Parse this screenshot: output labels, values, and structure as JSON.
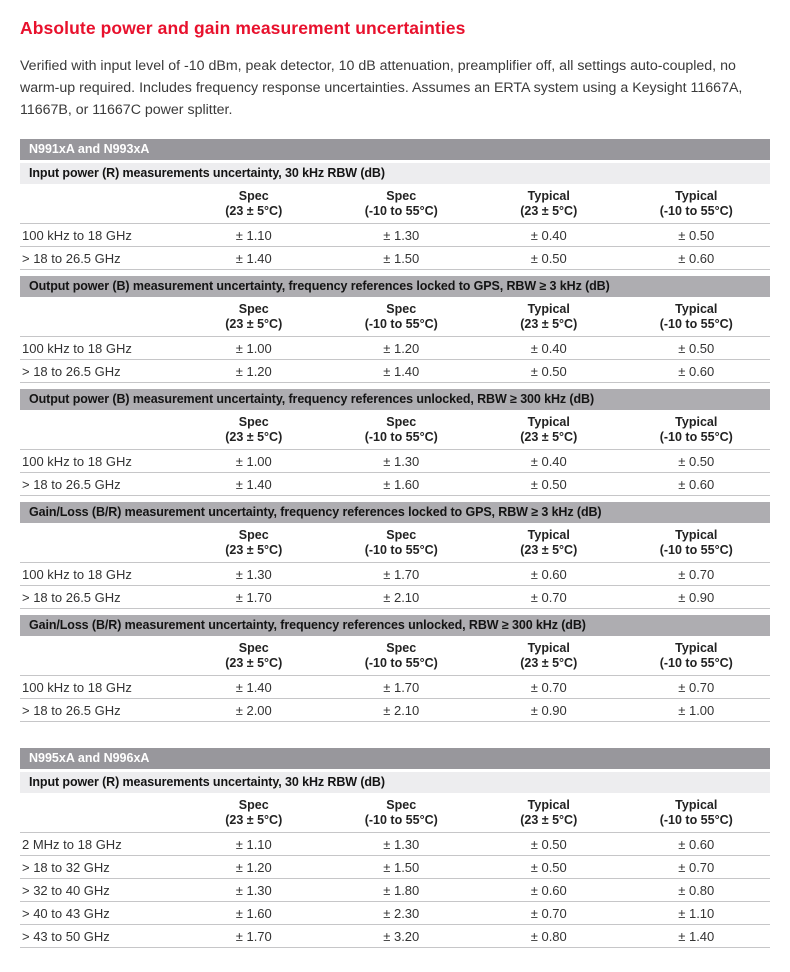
{
  "title": "Absolute power and gain measurement uncertainties",
  "intro": "Verified with input level of -10 dBm, peak detector, 10 dB attenuation, preamplifier off, all settings auto-coupled, no warm-up required. Includes frequency response uncertainties. Assumes an ERTA system using a Keysight 11667A, 11667B, or 11667C power splitter.",
  "colors": {
    "accent": "#e8112d",
    "product_bar": "#98979c",
    "section_bar": "#aeadb1",
    "light_bar": "#ededef",
    "rule": "#c6c6c8"
  },
  "columns": [
    {
      "l1": "Spec",
      "l2": "(23 ± 5°C)"
    },
    {
      "l1": "Spec",
      "l2": "(-10 to 55°C)"
    },
    {
      "l1": "Typical",
      "l2": "(23 ± 5°C)"
    },
    {
      "l1": "Typical",
      "l2": "(-10 to 55°C)"
    }
  ],
  "tables": [
    {
      "product": "N991xA and N993xA",
      "sections": [
        {
          "title": "Input power (R) measurements uncertainty, 30 kHz RBW (dB)",
          "style": "light",
          "rows": [
            {
              "label": "100 kHz to 18 GHz",
              "values": [
                "± 1.10",
                "± 1.30",
                "± 0.40",
                "± 0.50"
              ]
            },
            {
              "label": "> 18 to 26.5 GHz",
              "values": [
                "± 1.40",
                "± 1.50",
                "± 0.50",
                "± 0.60"
              ]
            }
          ]
        },
        {
          "title": "Output power (B) measurement uncertainty, frequency references locked to GPS, RBW ≥ 3 kHz (dB)",
          "style": "gray",
          "rows": [
            {
              "label": "100 kHz to 18 GHz",
              "values": [
                "± 1.00",
                "± 1.20",
                "± 0.40",
                "± 0.50"
              ]
            },
            {
              "label": "> 18 to 26.5 GHz",
              "values": [
                "± 1.20",
                "± 1.40",
                "± 0.50",
                "± 0.60"
              ]
            }
          ]
        },
        {
          "title": "Output power (B) measurement uncertainty, frequency references unlocked, RBW ≥ 300 kHz (dB)",
          "style": "gray",
          "rows": [
            {
              "label": "100 kHz to 18 GHz",
              "values": [
                "± 1.00",
                "± 1.30",
                "± 0.40",
                "± 0.50"
              ]
            },
            {
              "label": "> 18 to 26.5 GHz",
              "values": [
                "± 1.40",
                "± 1.60",
                "± 0.50",
                "± 0.60"
              ]
            }
          ]
        },
        {
          "title": "Gain/Loss (B/R) measurement uncertainty, frequency references locked to GPS, RBW ≥ 3 kHz (dB)",
          "style": "gray",
          "rows": [
            {
              "label": "100 kHz to 18 GHz",
              "values": [
                "± 1.30",
                "± 1.70",
                "± 0.60",
                "± 0.70"
              ]
            },
            {
              "label": "> 18 to 26.5 GHz",
              "values": [
                "± 1.70",
                "± 2.10",
                "± 0.70",
                "± 0.90"
              ]
            }
          ]
        },
        {
          "title": "Gain/Loss (B/R) measurement uncertainty, frequency references unlocked, RBW ≥ 300 kHz (dB)",
          "style": "gray",
          "rows": [
            {
              "label": "100 kHz to 18 GHz",
              "values": [
                "± 1.40",
                "± 1.70",
                "± 0.70",
                "± 0.70"
              ]
            },
            {
              "label": "> 18 to 26.5 GHz",
              "values": [
                "± 2.00",
                "± 2.10",
                "± 0.90",
                "± 1.00"
              ]
            }
          ]
        }
      ]
    },
    {
      "product": "N995xA and N996xA",
      "sections": [
        {
          "title": "Input power (R) measurements uncertainty, 30 kHz RBW (dB)",
          "style": "light",
          "rows": [
            {
              "label": "2 MHz to 18 GHz",
              "values": [
                "± 1.10",
                "± 1.30",
                "± 0.50",
                "± 0.60"
              ]
            },
            {
              "label": "> 18 to 32 GHz",
              "values": [
                "± 1.20",
                "± 1.50",
                "± 0.50",
                "± 0.70"
              ]
            },
            {
              "label": "> 32 to 40 GHz",
              "values": [
                "± 1.30",
                "± 1.80",
                "± 0.60",
                "± 0.80"
              ]
            },
            {
              "label": "> 40 to 43 GHz",
              "values": [
                "± 1.60",
                "± 2.30",
                "± 0.70",
                "± 1.10"
              ]
            },
            {
              "label": "> 43 to 50 GHz",
              "values": [
                "± 1.70",
                "± 3.20",
                "± 0.80",
                "± 1.40"
              ]
            }
          ]
        }
      ]
    }
  ]
}
